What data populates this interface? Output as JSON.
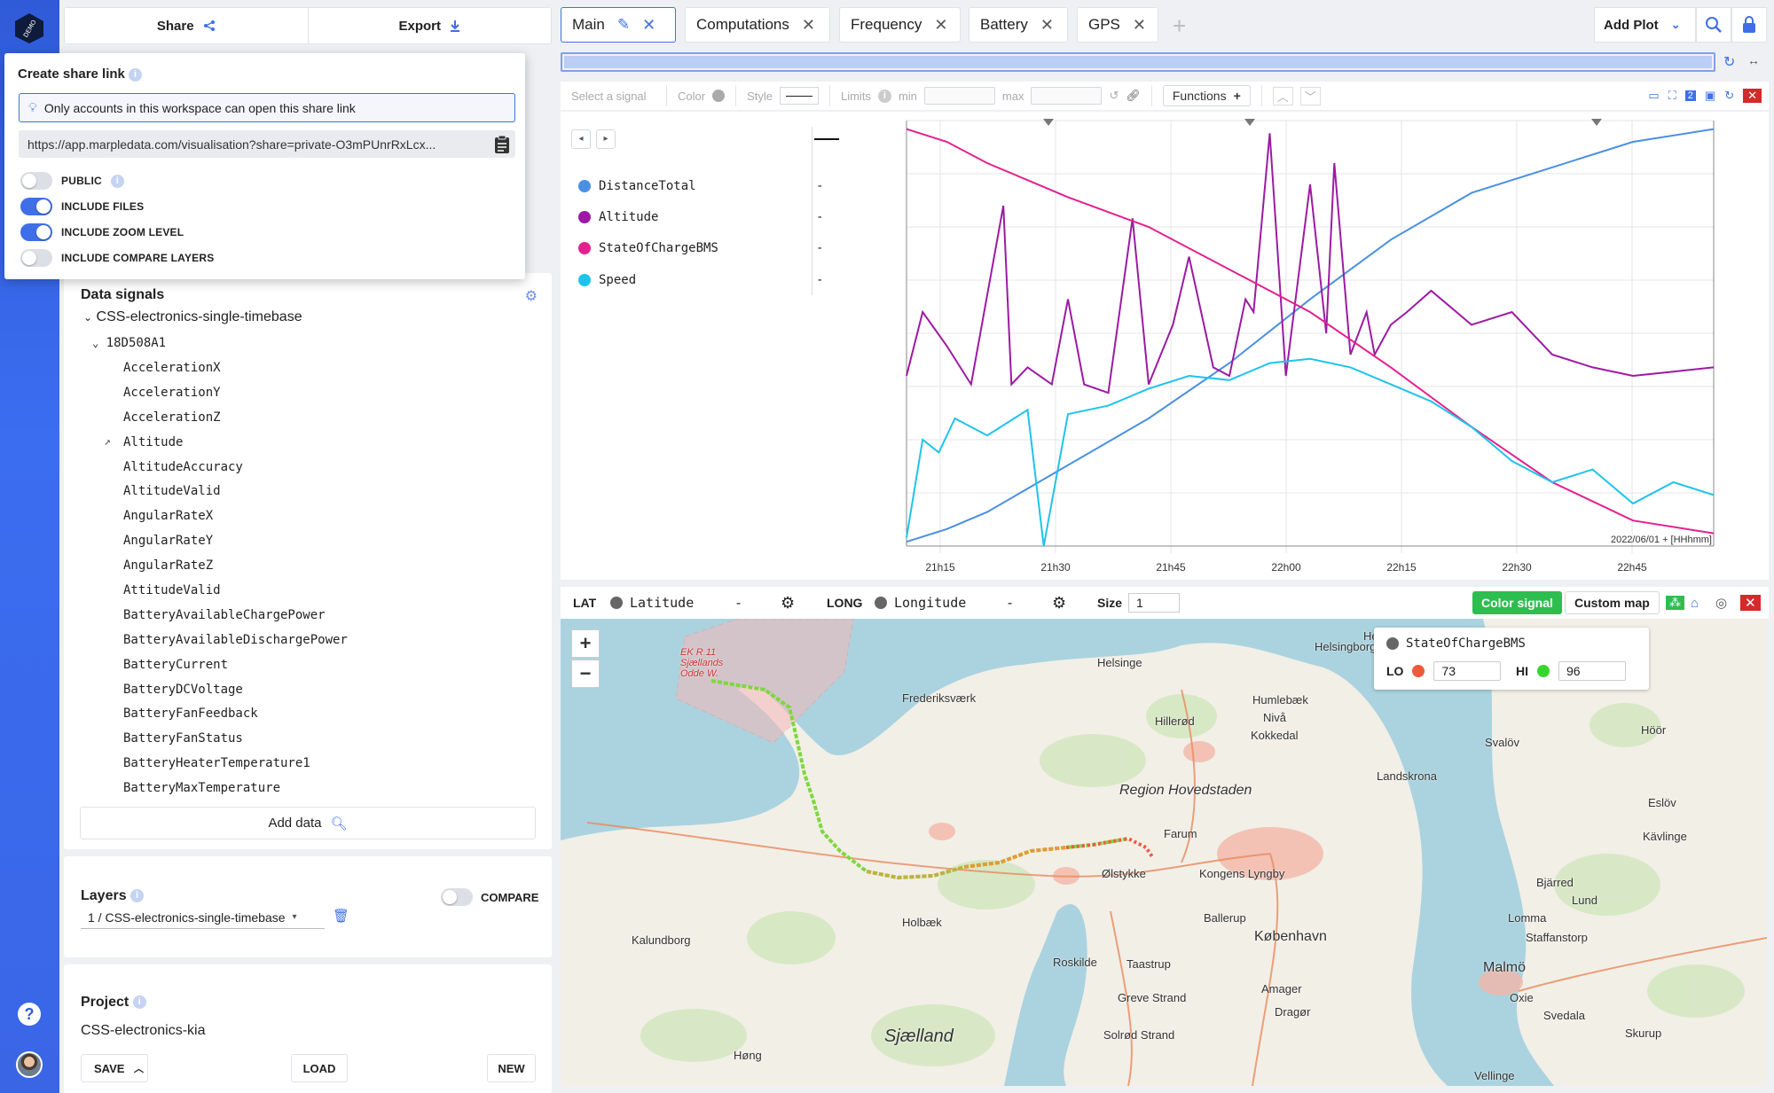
{
  "left_panel": {
    "share_label": "Share",
    "export_label": "Export",
    "share_popup": {
      "title": "Create share link",
      "notice": "Only accounts in this workspace can open this share link",
      "url": "https://app.marpledata.com/visualisation?share=private-O3mPUnrRxLcx...",
      "options": [
        {
          "label": "PUBLIC",
          "on": false,
          "info": true
        },
        {
          "label": "INCLUDE FILES",
          "on": true,
          "info": false
        },
        {
          "label": "INCLUDE ZOOM LEVEL",
          "on": true,
          "info": false
        },
        {
          "label": "INCLUDE COMPARE LAYERS",
          "on": false,
          "info": false
        }
      ]
    },
    "data_signals": {
      "title": "Data signals",
      "root": "CSS-electronics-single-timebase",
      "node": "18D508A1",
      "items": [
        "AccelerationX",
        "AccelerationY",
        "AccelerationZ",
        "Altitude",
        "AltitudeAccuracy",
        "AltitudeValid",
        "AngularRateX",
        "AngularRateY",
        "AngularRateZ",
        "AttitudeValid",
        "BatteryAvailableChargePower",
        "BatteryAvailableDischargePower",
        "BatteryCurrent",
        "BatteryDCVoltage",
        "BatteryFanFeedback",
        "BatteryFanStatus",
        "BatteryHeaterTemperature1",
        "BatteryMaxTemperature"
      ],
      "add_data": "Add data"
    },
    "layers": {
      "title": "Layers",
      "compare_label": "COMPARE",
      "selected_layer": "1 / CSS-electronics-single-timebase"
    },
    "project": {
      "title": "Project",
      "name": "CSS-electronics-kia",
      "save": "SAVE",
      "load": "LOAD",
      "new": "NEW"
    }
  },
  "tabs": [
    {
      "label": "Main",
      "active": true
    },
    {
      "label": "Computations"
    },
    {
      "label": "Frequency"
    },
    {
      "label": "Battery"
    },
    {
      "label": "GPS"
    }
  ],
  "add_plot_label": "Add Plot",
  "plot_toolbar": {
    "select_placeholder": "Select a signal",
    "color_label": "Color",
    "style_label": "Style",
    "limits_label": "Limits",
    "min_label": "min",
    "max_label": "max",
    "functions_label": "Functions"
  },
  "legend": [
    {
      "name": "DistanceTotal",
      "color": "#4a90e2",
      "value": "-"
    },
    {
      "name": "Altitude",
      "color": "#9c1aa3",
      "value": "-"
    },
    {
      "name": "StateOfChargeBMS",
      "color": "#e4208f",
      "value": "-"
    },
    {
      "name": "Speed",
      "color": "#1ec3ec",
      "value": "-"
    }
  ],
  "chart_data": {
    "type": "line",
    "x_ticks": [
      "21h15",
      "21h30",
      "21h45",
      "22h00",
      "22h15",
      "22h30",
      "22h45"
    ],
    "x_axis_label": "2022/06/01 + [HHhmm]",
    "series": [
      {
        "name": "DistanceTotal",
        "color": "#4a90e2",
        "x": [
          0,
          0.05,
          0.1,
          0.2,
          0.3,
          0.4,
          0.5,
          0.6,
          0.7,
          0.8,
          0.9,
          1.0
        ],
        "values": [
          0.01,
          0.04,
          0.08,
          0.19,
          0.3,
          0.43,
          0.58,
          0.72,
          0.83,
          0.89,
          0.95,
          0.98
        ]
      },
      {
        "name": "Altitude",
        "color": "#9c1aa3",
        "x": [
          0,
          0.02,
          0.05,
          0.08,
          0.12,
          0.13,
          0.15,
          0.18,
          0.2,
          0.22,
          0.25,
          0.28,
          0.3,
          0.33,
          0.35,
          0.38,
          0.4,
          0.42,
          0.43,
          0.45,
          0.47,
          0.5,
          0.52,
          0.53,
          0.55,
          0.57,
          0.58,
          0.6,
          0.62,
          0.65,
          0.7,
          0.75,
          0.8,
          0.85,
          0.9,
          0.95,
          1.0
        ],
        "values": [
          0.4,
          0.55,
          0.47,
          0.38,
          0.8,
          0.38,
          0.42,
          0.38,
          0.58,
          0.38,
          0.36,
          0.77,
          0.38,
          0.52,
          0.68,
          0.42,
          0.4,
          0.58,
          0.55,
          0.97,
          0.4,
          0.85,
          0.5,
          0.9,
          0.45,
          0.55,
          0.45,
          0.52,
          0.55,
          0.6,
          0.52,
          0.55,
          0.45,
          0.42,
          0.4,
          0.41,
          0.42
        ]
      },
      {
        "name": "StateOfChargeBMS",
        "color": "#e4208f",
        "x": [
          0,
          0.05,
          0.1,
          0.15,
          0.2,
          0.3,
          0.4,
          0.5,
          0.6,
          0.7,
          0.8,
          0.9,
          1.0
        ],
        "values": [
          0.98,
          0.95,
          0.9,
          0.86,
          0.82,
          0.75,
          0.65,
          0.55,
          0.42,
          0.28,
          0.15,
          0.06,
          0.03
        ]
      },
      {
        "name": "Speed",
        "color": "#1ec3ec",
        "x": [
          0,
          0.02,
          0.04,
          0.06,
          0.1,
          0.15,
          0.17,
          0.2,
          0.25,
          0.3,
          0.35,
          0.4,
          0.45,
          0.5,
          0.55,
          0.6,
          0.65,
          0.7,
          0.75,
          0.8,
          0.85,
          0.9,
          0.95,
          1.0
        ],
        "values": [
          0.02,
          0.25,
          0.22,
          0.3,
          0.26,
          0.32,
          0.0,
          0.31,
          0.33,
          0.37,
          0.4,
          0.39,
          0.43,
          0.44,
          0.42,
          0.38,
          0.34,
          0.28,
          0.2,
          0.15,
          0.18,
          0.1,
          0.15,
          0.12
        ]
      }
    ]
  },
  "map_toolbar": {
    "lat_label": "LAT",
    "lat_signal": "Latitude",
    "lat_value": "-",
    "long_label": "LONG",
    "long_signal": "Longitude",
    "long_value": "-",
    "size_label": "Size",
    "size_value": "1",
    "color_signal_label": "Color signal",
    "custom_map_label": "Custom map"
  },
  "color_panel": {
    "signal": "StateOfChargeBMS",
    "lo_label": "LO",
    "lo_value": "73",
    "lo_color": "#f05a3c",
    "hi_label": "HI",
    "hi_value": "96",
    "hi_color": "#37d62c"
  },
  "map_labels": [
    "Helsingør",
    "Helsinge",
    "Helsingborg",
    "Frederiksværk",
    "Hillerød",
    "Humlebæk",
    "Nivå",
    "Kokkedal",
    "Region Hovedstaden",
    "Farum",
    "Ølstykke",
    "Kongens Lyngby",
    "Ballerup",
    "Holbæk",
    "Kalundborg",
    "Roskilde",
    "Taastrup",
    "København",
    "Amager",
    "Greve Strand",
    "Dragør",
    "Solrød Strand",
    "Sjælland",
    "Høng",
    "Landskrona",
    "Svalöv",
    "Höör",
    "Eslöv",
    "Kävlinge",
    "Bjärred",
    "Lund",
    "Lomma",
    "Staffanstorp",
    "Malmö",
    "Oxie",
    "Svedala",
    "Skurup",
    "Vellinge",
    "EK R 11 Sjællands Odde W."
  ]
}
